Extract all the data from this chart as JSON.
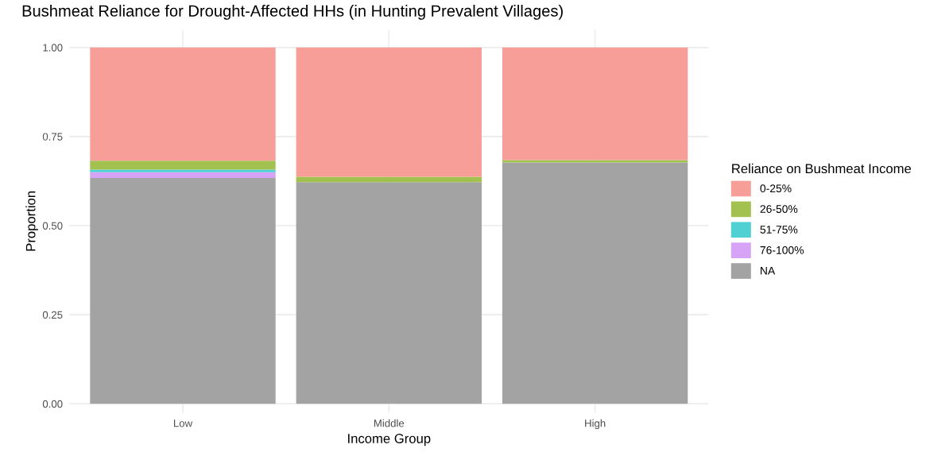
{
  "chart_data": {
    "type": "bar",
    "stacked": true,
    "title": "Bushmeat Reliance for Drought-Affected HHs (in Hunting Prevalent Villages)",
    "xlabel": "Income Group",
    "ylabel": "Proportion",
    "legend_title": "Reliance on Bushmeat Income",
    "categories": [
      "Low",
      "Middle",
      "High"
    ],
    "series": [
      {
        "name": "NA",
        "color": "#a3a3a3",
        "values": [
          0.634,
          0.622,
          0.677
        ]
      },
      {
        "name": "76-100%",
        "color": "#d6a3f7",
        "values": [
          0.016,
          0,
          0
        ]
      },
      {
        "name": "51-75%",
        "color": "#4fd0d3",
        "values": [
          0.007,
          0,
          0
        ]
      },
      {
        "name": "26-50%",
        "color": "#a2c14e",
        "values": [
          0.025,
          0.015,
          0.007
        ]
      },
      {
        "name": "0-25%",
        "color": "#f89e98",
        "values": [
          0.318,
          0.363,
          0.316
        ]
      }
    ],
    "ylim": [
      -0.025,
      1.05
    ],
    "yticks": [
      {
        "value": 0,
        "label": "0.00"
      },
      {
        "value": 0.25,
        "label": "0.25"
      },
      {
        "value": 0.5,
        "label": "0.50"
      },
      {
        "value": 0.75,
        "label": "0.75"
      },
      {
        "value": 1,
        "label": "1.00"
      }
    ],
    "grid": true,
    "legend": "right"
  }
}
